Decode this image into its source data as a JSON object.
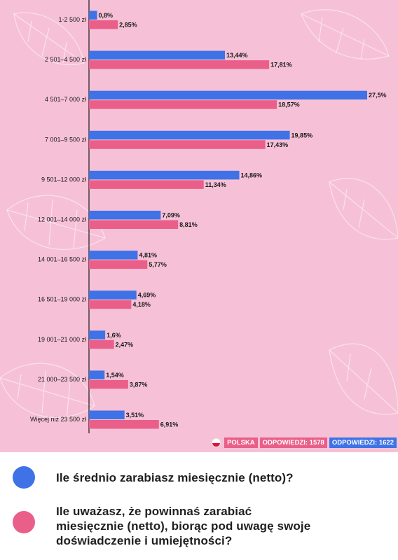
{
  "colors": {
    "background": "#f6c1d6",
    "blue": "#3f72e6",
    "pink": "#ea5f8a",
    "axis": "#1a1a1a"
  },
  "chart_data": {
    "type": "bar",
    "orientation": "horizontal",
    "categories": [
      "1-2 500 zł",
      "2 501–4 500 zł",
      "4 501–7 000 zł",
      "7 001–9 500 zł",
      "9 501–12 000 zł",
      "12 001–14 000 zł",
      "14 001–16 500 zł",
      "16 501–19 000 zł",
      "19 001–21 000 zł",
      "21 000–23 500 zł",
      "Więcej niż 23 500 zł"
    ],
    "series": [
      {
        "color": "#3f72e6",
        "values": [
          0.8,
          13.44,
          27.5,
          19.85,
          14.86,
          7.09,
          4.81,
          4.69,
          1.6,
          1.54,
          3.51
        ],
        "labels": [
          "0,8%",
          "13,44%",
          "27,5%",
          "19,85%",
          "14,86%",
          "7,09%",
          "4,81%",
          "4,69%",
          "1,6%",
          "1,54%",
          "3,51%"
        ]
      },
      {
        "color": "#ea5f8a",
        "values": [
          2.85,
          17.81,
          18.57,
          17.43,
          11.34,
          8.81,
          5.77,
          4.18,
          2.47,
          3.87,
          6.91
        ],
        "labels": [
          "2,85%",
          "17,81%",
          "18,57%",
          "17,43%",
          "11,34%",
          "8,81%",
          "5,77%",
          "4,18%",
          "2,47%",
          "3,87%",
          "6,91%"
        ]
      }
    ],
    "xlim": [
      0,
      27.5
    ],
    "grid": false,
    "title": "",
    "xlabel": "",
    "ylabel": ""
  },
  "badges": {
    "country": "POLSKA",
    "pink_responses": "ODPOWIEDZI: 1578",
    "blue_responses": "ODPOWIEDZI: 1622"
  },
  "legend": [
    {
      "color": "#3f72e6",
      "text": "Ile średnio zarabiasz miesięcznie (netto)?"
    },
    {
      "color": "#ea5f8a",
      "text": "Ile uważasz, że powinnaś zarabiać\nmiesięcznie (netto), biorąc pod uwagę swoje\ndoświadczenie i umiejętności?"
    }
  ]
}
